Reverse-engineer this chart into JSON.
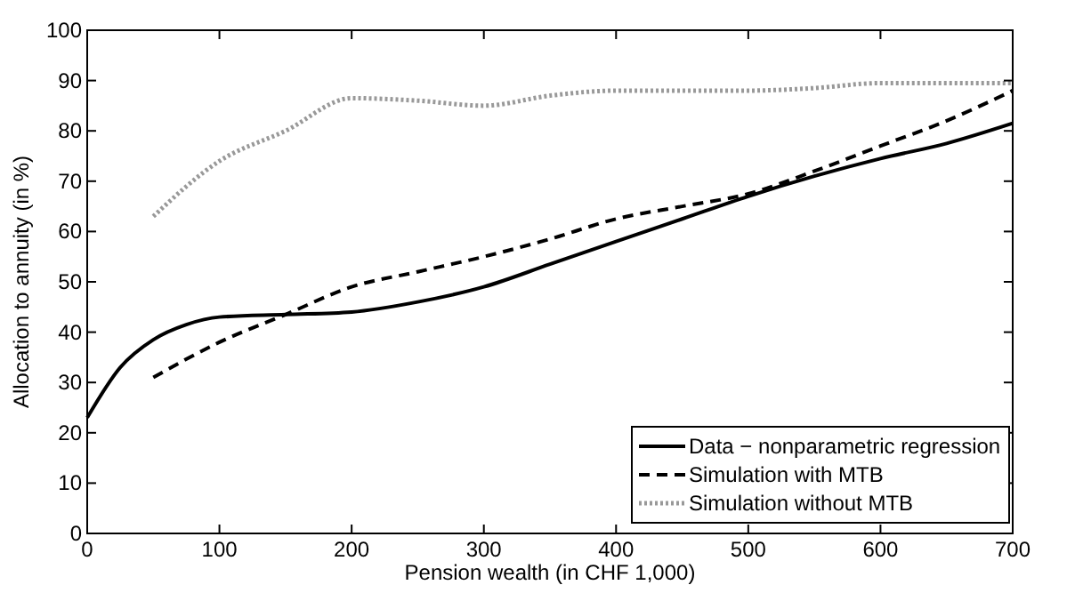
{
  "chart_data": {
    "type": "line",
    "xlabel": "Pension wealth (in CHF 1,000)",
    "ylabel": "Allocation to annuity (in %)",
    "xlim": [
      0,
      700
    ],
    "xticks": [
      0,
      100,
      200,
      300,
      400,
      500,
      600,
      700
    ],
    "ylim": [
      0,
      100
    ],
    "yticks": [
      0,
      10,
      20,
      30,
      40,
      50,
      60,
      70,
      80,
      90,
      100
    ],
    "grid": false,
    "legend": "bottom right",
    "marker": "none",
    "series": [
      {
        "name": "Data − nonparametric regression",
        "color": "#000000",
        "line_style": "solid",
        "x": [
          0,
          25,
          50,
          75,
          100,
          150,
          200,
          250,
          300,
          350,
          400,
          450,
          500,
          550,
          600,
          650,
          700
        ],
        "values": [
          23,
          33,
          38.5,
          41.5,
          43,
          43.5,
          44,
          46,
          49,
          53.5,
          58,
          62.5,
          67,
          71,
          74.5,
          77.5,
          81.5
        ]
      },
      {
        "name": "Simulation with MTB",
        "color": "#000000",
        "line_style": "dashed",
        "x": [
          50,
          100,
          150,
          200,
          250,
          300,
          350,
          400,
          450,
          500,
          550,
          600,
          650,
          700
        ],
        "values": [
          31,
          38,
          43.5,
          49,
          52,
          55,
          58.5,
          62.5,
          65,
          67.5,
          72,
          77,
          82,
          88
        ]
      },
      {
        "name": "Simulation without MTB",
        "color": "#999999",
        "line_style": "dotted",
        "x": [
          50,
          100,
          150,
          200,
          250,
          300,
          350,
          400,
          450,
          500,
          550,
          600,
          650,
          700
        ],
        "values": [
          63,
          74,
          80,
          86.5,
          86,
          85,
          87,
          88,
          88,
          88,
          88.5,
          89.5,
          89.5,
          89.5
        ]
      }
    ]
  }
}
